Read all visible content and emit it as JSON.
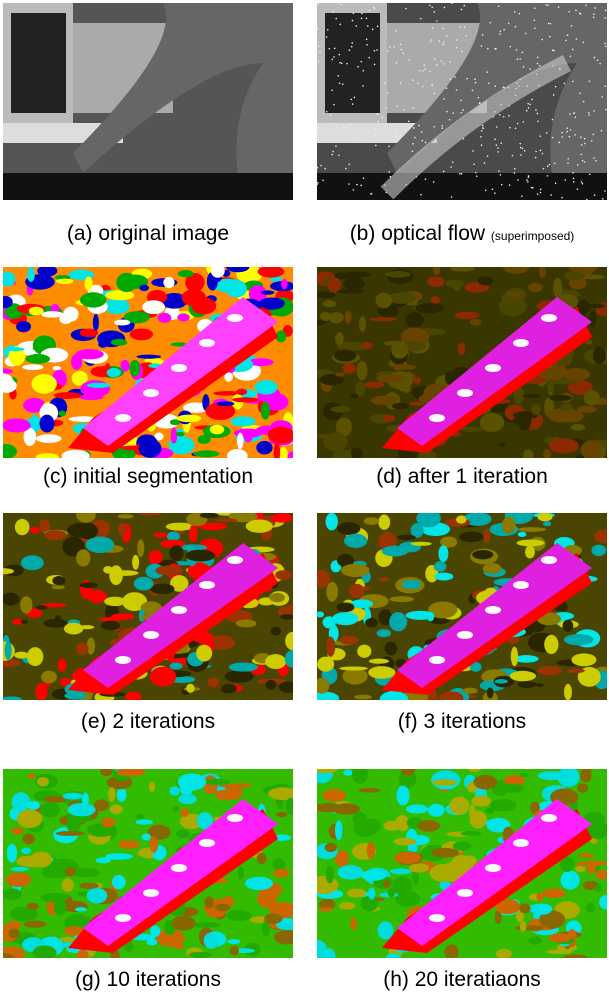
{
  "panels": [
    {
      "label": "(a) original image"
    },
    {
      "label": "(b) optical flow",
      "note": "(superimposed)"
    },
    {
      "label": "(c) initial segmentation"
    },
    {
      "label": "(d) after 1 iteration"
    },
    {
      "label": "(e) 2 iterations"
    },
    {
      "label": "(f) 3 iterations"
    },
    {
      "label": "(g) 10 iterations"
    },
    {
      "label": "(h) 20 iteratiaons"
    }
  ]
}
